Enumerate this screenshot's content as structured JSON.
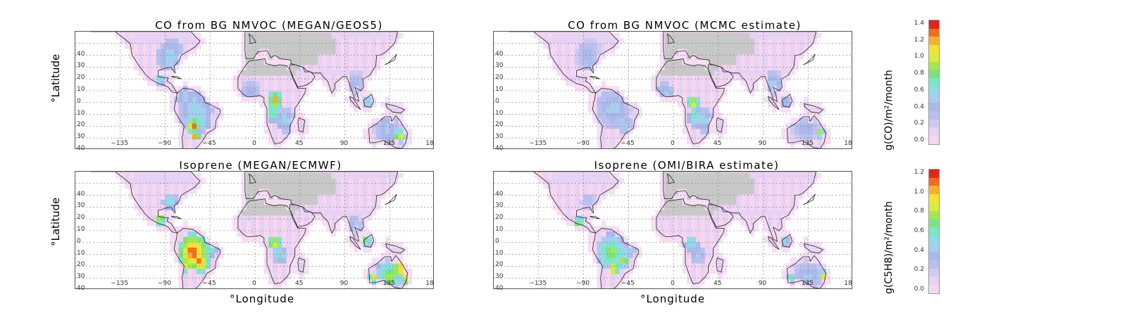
{
  "panels": {
    "p1": {
      "title": "CO from BG NMVOC (MEGAN/GEOS5)"
    },
    "p2": {
      "title": "CO from BG NMVOC (MCMC estimate)"
    },
    "p3": {
      "title": "Isoprene (MEGAN/ECMWF)"
    },
    "p4": {
      "title": "Isoprene (OMI/BIRA estimate)"
    }
  },
  "axes": {
    "ylabel": "°Latitude",
    "xlabel": "°Longitude",
    "lat_ticks": [
      "40",
      "30",
      "20",
      "10",
      "0",
      "10",
      "20",
      "30",
      "40"
    ],
    "lon_ticks": [
      "−135",
      "−90",
      "−45",
      "0",
      "45",
      "90",
      "135",
      "18"
    ]
  },
  "colorbars": {
    "co": {
      "unit": "g(CO)/m²/month",
      "ticks": [
        "1.4",
        "1.2",
        "1.0",
        "0.8",
        "0.6",
        "0.4",
        "0.2",
        "0.0"
      ],
      "range": [
        0.0,
        1.4
      ]
    },
    "isoprene": {
      "unit": "g(C5H8)/m²/month",
      "ticks": [
        "1.2",
        "1.0",
        "0.8",
        "0.6",
        "0.4",
        "0.2",
        "0.0"
      ],
      "range": [
        0.0,
        1.2
      ]
    }
  },
  "colors": {
    "scale": [
      "#f7d6f0",
      "#e6d2f4",
      "#cfc9f2",
      "#b9c0ee",
      "#aab8ea",
      "#a9cdf0",
      "#8fdbe7",
      "#7de6c6",
      "#7ee37f",
      "#a5e84d",
      "#d8ec3b",
      "#f7e234",
      "#f8b02c",
      "#f16e1f",
      "#e4241a"
    ],
    "land_nodata": "#c8c8c8",
    "coast": "#222222"
  }
}
